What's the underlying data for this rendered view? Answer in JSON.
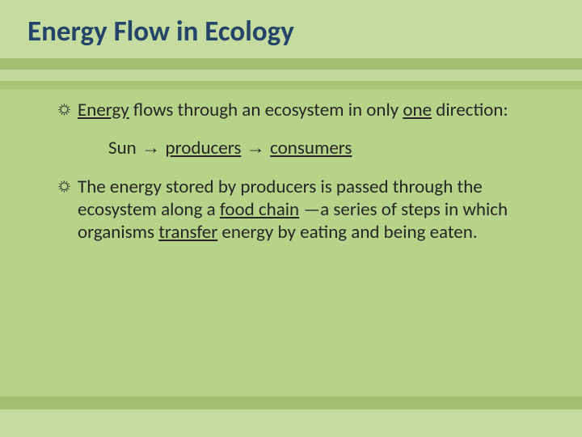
{
  "slide": {
    "title": "Energy Flow in Ecology",
    "title_color": "#24446a",
    "title_fontsize": 35,
    "body_fontsize": 23,
    "body_color": "#262626",
    "background": "#b6d389",
    "bands": {
      "top": "#c5db9f",
      "line1": "#a2c071",
      "line2": "#c3d99c",
      "line3": "#a8c578",
      "bottom_line": "#a2c071",
      "bottom": "#c5db9f"
    },
    "bullet_glyph": "☼",
    "arrow_glyph": "→",
    "items": [
      {
        "segments": [
          {
            "text": "Energy",
            "underline": true
          },
          {
            "text": " flows through an ecosystem in only ",
            "underline": false
          },
          {
            "text": "one",
            "underline": true
          },
          {
            "text": " direction:",
            "underline": false
          }
        ]
      },
      {
        "segments": [
          {
            "text": "The energy stored by producers is passed through the ecosystem along a ",
            "underline": false
          },
          {
            "text": "food chain",
            "underline": true
          },
          {
            "text": " —a series of steps in which organisms ",
            "underline": false
          },
          {
            "text": "transfer",
            "underline": true
          },
          {
            "text": " energy by eating and being eaten.",
            "underline": false
          }
        ]
      }
    ],
    "flow": {
      "parts": [
        {
          "text": "Sun",
          "underline": false
        },
        {
          "text": "producers",
          "underline": true
        },
        {
          "text": "consumers",
          "underline": true
        }
      ]
    }
  }
}
